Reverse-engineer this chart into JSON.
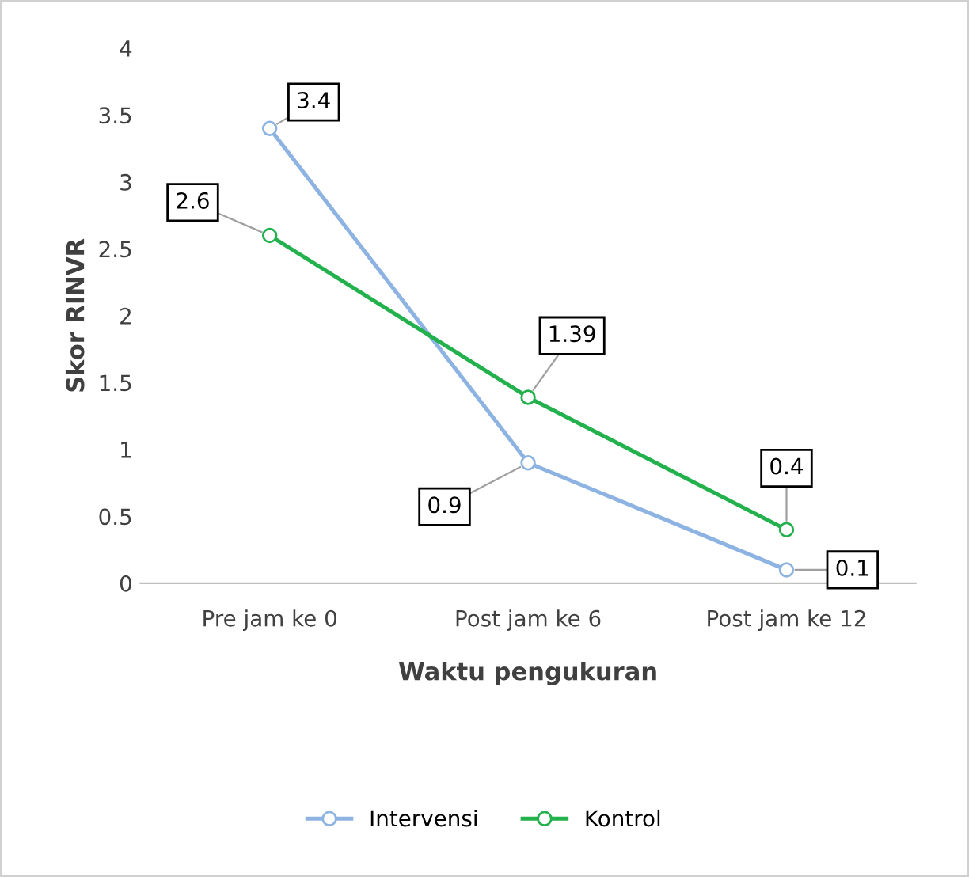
{
  "chart_data": {
    "type": "line",
    "xlabel": "Waktu pengukuran",
    "ylabel": "Skor RINVR",
    "categories": [
      "Pre jam ke 0",
      "Post jam ke 6",
      "Post jam ke 12"
    ],
    "series": [
      {
        "name": "Intervensi",
        "color": "#8db3e2",
        "values": [
          3.4,
          0.9,
          0.1
        ]
      },
      {
        "name": "Kontrol",
        "color": "#22b14c",
        "values": [
          2.6,
          1.39,
          0.4
        ]
      }
    ],
    "ylim": [
      0,
      4
    ],
    "yticks": [
      0,
      0.5,
      1,
      1.5,
      2,
      2.5,
      3,
      3.5,
      4
    ],
    "grid": false,
    "legend": "bottom",
    "marker": "circle",
    "line_style": "solid",
    "data_labels": true
  }
}
